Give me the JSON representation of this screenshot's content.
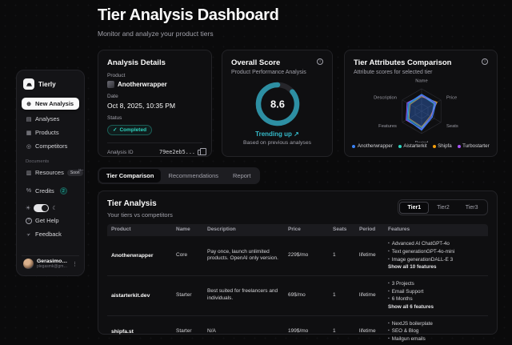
{
  "header": {
    "title": "Tier Analysis Dashboard",
    "subtitle": "Monitor and analyze your product tiers"
  },
  "sidebar": {
    "brand": "Tierly",
    "nav": [
      {
        "label": "New Analysis"
      },
      {
        "label": "Analyses"
      },
      {
        "label": "Products"
      },
      {
        "label": "Competitors"
      }
    ],
    "documents_label": "Documents",
    "resources_label": "Resources",
    "resources_badge": "Soon",
    "credits_label": "Credits",
    "credits_count": "2",
    "get_help_label": "Get Help",
    "feedback_label": "Feedback",
    "user": {
      "name": "Gerasimos ...",
      "email": "plegasmk@gmail.c..."
    }
  },
  "analysis_details": {
    "title": "Analysis Details",
    "product_label": "Product",
    "product_name": "Anotherwrapper",
    "date_label": "Date",
    "date_value": "Oct 8, 2025, 10:35 PM",
    "status_label": "Status",
    "status_value": "Completed",
    "id_label": "Analysis ID",
    "id_value": "79ee2eb5..."
  },
  "overall_score": {
    "title": "Overall Score",
    "subtitle": "Product Performance Analysis",
    "score": "8.6",
    "trend_label": "Trending up",
    "trend_arrow": "↗",
    "trend_note": "Based on previous analyses"
  },
  "tier_attributes": {
    "title": "Tier Attributes Comparison",
    "subtitle": "Attribute scores for selected tier"
  },
  "main_tabs": [
    {
      "label": "Tier Comparison"
    },
    {
      "label": "Recommendations"
    },
    {
      "label": "Report"
    }
  ],
  "tier_analysis": {
    "title": "Tier Analysis",
    "subtitle": "Your tiers vs competitors",
    "tier_tabs": [
      {
        "label": "Tier1"
      },
      {
        "label": "Tier2"
      },
      {
        "label": "Tier3"
      }
    ],
    "columns": [
      "Product",
      "Name",
      "Description",
      "Price",
      "Seats",
      "Period",
      "Features"
    ],
    "rows": [
      {
        "product": "Anotherwrapper",
        "name": "Core",
        "description": "Pay once, launch unlimited products. OpenAI only version.",
        "price": "229$/mo",
        "seats": "1",
        "period": "lifetime",
        "features": [
          "Advanced AI ChatGPT-4o",
          "Text generationGPT-4o-mini",
          "Image generationDALL-E 3"
        ],
        "more": "Show all 10 features"
      },
      {
        "product": "aistarterkit.dev",
        "name": "Starter",
        "description": "Best suited for freelancers and individuals.",
        "price": "69$/mo",
        "seats": "1",
        "period": "lifetime",
        "features": [
          "3 Projects",
          "Email Support",
          "6 Months"
        ],
        "more": "Show all 6 features"
      },
      {
        "product": "shipfa.st",
        "name": "Starter",
        "description": "N/A",
        "price": "199$/mo",
        "seats": "1",
        "period": "lifetime",
        "features": [
          "NextJS boilerplate",
          "SEO & Blog",
          "Mailgun emails"
        ],
        "more": ""
      }
    ]
  },
  "chart_data": [
    {
      "type": "radar",
      "axes": [
        "Name",
        "Price",
        "Seats",
        "Period",
        "Features",
        "Description"
      ],
      "max": 10,
      "grid": true,
      "legend_position": "bottom",
      "series": [
        {
          "name": "Anotherwrapper",
          "color": "#3b82f6",
          "fill": true,
          "values": [
            7.5,
            7.5,
            5.5,
            8.5,
            7.5,
            7.0
          ]
        },
        {
          "name": "Aistarterkit",
          "color": "#2dd4bf",
          "fill": false,
          "values": [
            7.0,
            6.5,
            5.0,
            7.5,
            7.0,
            6.5
          ]
        },
        {
          "name": "Shipfa",
          "color": "#f59e0b",
          "fill": false,
          "values": [
            6.5,
            8.0,
            4.5,
            7.0,
            6.5,
            6.0
          ]
        },
        {
          "name": "Turbostarter",
          "color": "#a855f7",
          "fill": false,
          "values": [
            7.0,
            7.0,
            5.0,
            8.0,
            8.0,
            7.5
          ]
        }
      ]
    },
    {
      "type": "donut",
      "title": "Overall Score",
      "value": 8.6,
      "max": 10,
      "color": "#2d8fa3",
      "track": "#26262b"
    }
  ],
  "colors": {
    "accent_teal": "#2dd4bf",
    "blue": "#3b82f6",
    "orange": "#f59e0b",
    "purple": "#a855f7"
  }
}
